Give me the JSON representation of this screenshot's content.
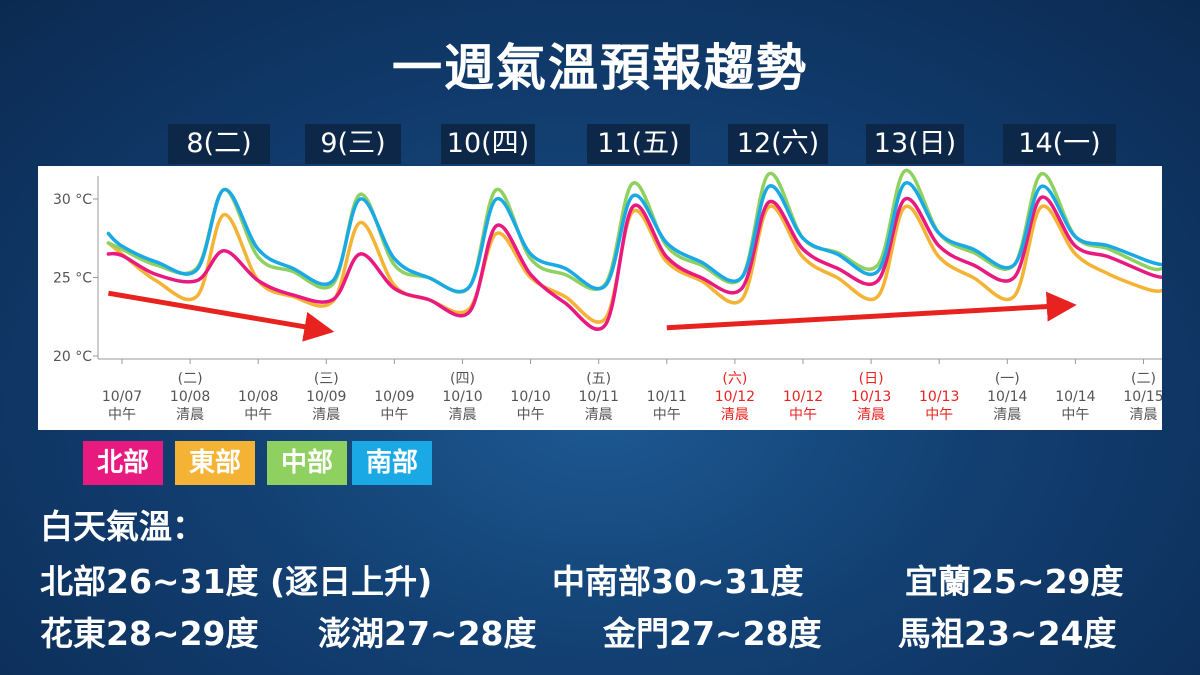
{
  "title": "一週氣溫預報趨勢",
  "day_tags": [
    "8(二)",
    "9(三)",
    "10(四)",
    "11(五)",
    "12(六)",
    "13(日)",
    "14(一)"
  ],
  "colors": {
    "north": "#e8197f",
    "east": "#f5b335",
    "central": "#8fd160",
    "south": "#1ba9e6",
    "weekend": "#e8231f",
    "arrow": "#e8231f"
  },
  "legend": [
    {
      "label": "北部",
      "color": "#e8197f"
    },
    {
      "label": "東部",
      "color": "#f5b335"
    },
    {
      "label": "中部",
      "color": "#8fd160"
    },
    {
      "label": "南部",
      "color": "#1ba9e6"
    }
  ],
  "summary": {
    "heading": "白天氣溫：",
    "lines": [
      [
        "北部26~31度 (逐日上升)",
        "中南部30~31度",
        "宜蘭25~29度"
      ],
      [
        "花東28~29度",
        "澎湖27~28度",
        "金門27~28度",
        "馬祖23~24度"
      ]
    ]
  },
  "chart_data": {
    "type": "line",
    "yticks": [
      "20 °C",
      "25 °C",
      "30 °C"
    ],
    "ylim": [
      20,
      32
    ],
    "x_ticks": [
      {
        "week": "",
        "date": "10/07",
        "time": "中午",
        "weekend": false
      },
      {
        "week": "(二)",
        "date": "10/08",
        "time": "清晨",
        "weekend": false
      },
      {
        "week": "",
        "date": "10/08",
        "time": "中午",
        "weekend": false
      },
      {
        "week": "(三)",
        "date": "10/09",
        "time": "清晨",
        "weekend": false
      },
      {
        "week": "",
        "date": "10/09",
        "time": "中午",
        "weekend": false
      },
      {
        "week": "(四)",
        "date": "10/10",
        "time": "清晨",
        "weekend": false
      },
      {
        "week": "",
        "date": "10/10",
        "time": "中午",
        "weekend": false
      },
      {
        "week": "(五)",
        "date": "10/11",
        "time": "清晨",
        "weekend": false
      },
      {
        "week": "",
        "date": "10/11",
        "time": "中午",
        "weekend": false
      },
      {
        "week": "(六)",
        "date": "10/12",
        "time": "清晨",
        "weekend": true
      },
      {
        "week": "",
        "date": "10/12",
        "time": "中午",
        "weekend": true
      },
      {
        "week": "(日)",
        "date": "10/13",
        "time": "清晨",
        "weekend": true
      },
      {
        "week": "",
        "date": "10/13",
        "time": "中午",
        "weekend": true
      },
      {
        "week": "(一)",
        "date": "10/14",
        "time": "清晨",
        "weekend": false
      },
      {
        "week": "",
        "date": "10/14",
        "time": "中午",
        "weekend": false
      },
      {
        "week": "(二)",
        "date": "10/15",
        "time": "清晨",
        "weekend": false
      }
    ],
    "x": [
      -0.2,
      0,
      0.5,
      1.1,
      1.5,
      2,
      2.5,
      3.1,
      3.5,
      4,
      4.5,
      5.1,
      5.5,
      6,
      6.5,
      7.1,
      7.5,
      8,
      8.5,
      9.1,
      9.5,
      10,
      10.5,
      11.1,
      11.5,
      12,
      12.5,
      13.1,
      13.5,
      14,
      14.5,
      15.1,
      15.3
    ],
    "series": [
      {
        "name": "北部",
        "key": "north",
        "values": [
          26.5,
          26.4,
          25.2,
          24.8,
          26.7,
          24.8,
          23.9,
          23.6,
          26.5,
          24.3,
          23.6,
          22.8,
          28.3,
          25.2,
          23.4,
          22.0,
          29.5,
          26.3,
          25.0,
          24.3,
          29.8,
          26.8,
          25.6,
          24.8,
          30.0,
          27.0,
          25.8,
          25.0,
          30.1,
          27.0,
          26.3,
          25.2,
          25.0
        ]
      },
      {
        "name": "東部",
        "key": "east",
        "values": [
          27.2,
          26.5,
          24.8,
          23.8,
          29.0,
          24.8,
          23.8,
          23.5,
          28.5,
          24.5,
          23.6,
          23.0,
          27.8,
          25.0,
          23.8,
          22.4,
          29.2,
          26.0,
          24.8,
          23.6,
          29.5,
          26.3,
          25.0,
          23.8,
          29.5,
          26.3,
          25.0,
          23.8,
          29.5,
          26.5,
          25.2,
          24.2,
          24.2
        ]
      },
      {
        "name": "中部",
        "key": "central",
        "values": [
          27.2,
          26.8,
          25.8,
          25.6,
          30.6,
          26.3,
          25.4,
          24.6,
          30.3,
          25.8,
          25.0,
          24.4,
          30.6,
          26.2,
          25.2,
          24.6,
          31.0,
          27.0,
          25.8,
          25.0,
          31.6,
          27.5,
          26.6,
          25.8,
          31.8,
          27.8,
          26.6,
          25.8,
          31.6,
          27.6,
          26.8,
          25.6,
          25.6
        ]
      },
      {
        "name": "南部",
        "key": "south",
        "values": [
          27.8,
          27.0,
          26.0,
          25.5,
          30.6,
          26.8,
          25.6,
          24.8,
          30.0,
          26.2,
          25.0,
          24.4,
          30.0,
          26.5,
          25.6,
          24.5,
          30.2,
          27.2,
          26.0,
          25.0,
          30.8,
          27.5,
          26.5,
          25.4,
          31.0,
          27.8,
          26.8,
          25.8,
          30.8,
          27.6,
          27.0,
          26.0,
          25.8
        ]
      }
    ],
    "trend_arrows": [
      {
        "from": [
          -0.2,
          24.0
        ],
        "to": [
          2.9,
          21.7
        ]
      },
      {
        "from": [
          8.0,
          21.8
        ],
        "to": [
          13.8,
          23.2
        ]
      }
    ],
    "grid": false,
    "legend_position": "bottom-left"
  }
}
